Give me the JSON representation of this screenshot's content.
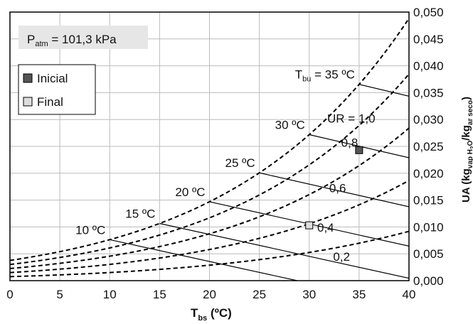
{
  "chart_data": {
    "type": "line",
    "title": "",
    "xlabel_main": "T",
    "xlabel_sub": "bs",
    "xlabel_unit": " (ºC)",
    "ylabel": "UA (kg",
    "ylabel_sub1": "vap H",
    "ylabel_sub2": "2",
    "ylabel_mid": "O",
    "ylabel_slash": "/kg",
    "ylabel_sub3": "ar seco",
    "ylabel_end": ")",
    "xlim": [
      0,
      40
    ],
    "ylim": [
      0,
      0.05
    ],
    "x_ticks": [
      "0",
      "5",
      "10",
      "15",
      "20",
      "25",
      "30",
      "35",
      "40"
    ],
    "y_ticks": [
      "0,000",
      "0,005",
      "0,010",
      "0,015",
      "0,020",
      "0,025",
      "0,030",
      "0,035",
      "0,040",
      "0,045",
      "0,050"
    ],
    "pressure_label": {
      "main": "P",
      "sub": "atm",
      "rest": " = 101,3 kPa"
    },
    "legend": [
      {
        "name": "Inicial",
        "color": "#555555"
      },
      {
        "name": "Final",
        "color": "#dddddd"
      }
    ],
    "rh_curves": [
      {
        "rh": 1.0,
        "label": "UR = 1,0"
      },
      {
        "rh": 0.8,
        "label": "0,8"
      },
      {
        "rh": 0.6,
        "label": "0,6"
      },
      {
        "rh": 0.4,
        "label": "0,4"
      },
      {
        "rh": 0.2,
        "label": "0,2"
      }
    ],
    "wet_bulb_lines": [
      {
        "twb": 10,
        "label": "10 ºC"
      },
      {
        "twb": 15,
        "label": "15 ºC"
      },
      {
        "twb": 20,
        "label": "20 ºC"
      },
      {
        "twb": 25,
        "label": "25 ºC"
      },
      {
        "twb": 30,
        "label": "30 ºC"
      },
      {
        "twb": 35,
        "label_main": "T",
        "label_sub": "bu",
        "label_rest": " = 35 ºC"
      }
    ],
    "points": [
      {
        "name": "Inicial",
        "x": 35,
        "y": 0.0243,
        "color": "#555555"
      },
      {
        "name": "Final",
        "x": 30,
        "y": 0.0103,
        "color": "#dddddd"
      }
    ]
  }
}
